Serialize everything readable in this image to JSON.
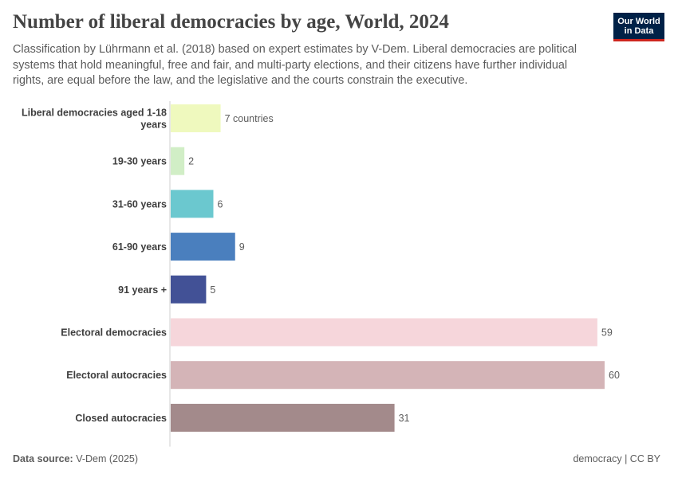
{
  "title": "Number of liberal democracies by age, World, 2024",
  "subtitle": "Classification by Lührmann et al. (2018) based on expert estimates by V-Dem. Liberal democracies are political systems that hold meaningful, free and fair, and multi-party elections, and their citizens have further individual rights, are equal before the law, and the legislative and the courts constrain the executive.",
  "logo": {
    "line1": "Our World",
    "line2": "in Data"
  },
  "footer": {
    "source_label": "Data source:",
    "source_value": "V-Dem (2025)",
    "right": "democracy | CC BY"
  },
  "chart_data": {
    "type": "bar",
    "orientation": "horizontal",
    "unit": "countries",
    "categories": [
      [
        "Liberal democracies aged 1-18",
        "years"
      ],
      [
        "19-30 years"
      ],
      [
        "31-60 years"
      ],
      [
        "61-90 years"
      ],
      [
        "91 years +"
      ],
      [
        "Electoral democracies"
      ],
      [
        "Electoral autocracies"
      ],
      [
        "Closed autocracies"
      ]
    ],
    "values": [
      7,
      2,
      6,
      9,
      5,
      59,
      60,
      31
    ],
    "value_labels": [
      "7 countries",
      "2",
      "6",
      "9",
      "5",
      "59",
      "60",
      "31"
    ],
    "colors": [
      "#eff9be",
      "#d1eec6",
      "#6bc8cf",
      "#4a7fbe",
      "#425196",
      "#f6d6db",
      "#d4b4b7",
      "#a38a8b"
    ],
    "xlim": [
      0,
      60
    ]
  }
}
